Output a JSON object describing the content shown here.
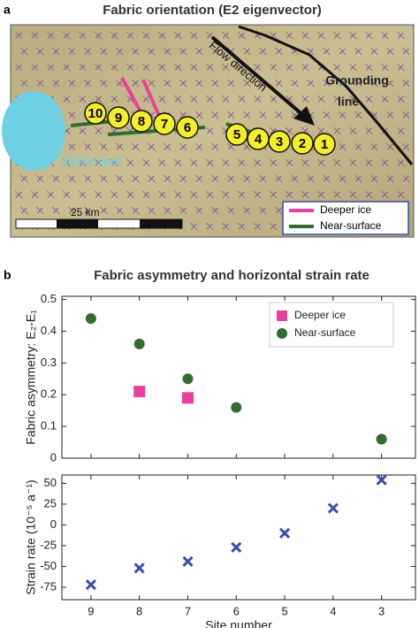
{
  "panel_a": {
    "letter": "a",
    "title": "Fabric orientation (E2 eigenvector)",
    "flow_label": "Flow direction",
    "grounding_label": [
      "Grounding",
      "line"
    ],
    "sticky_label": "Sticky spot",
    "scale_label": "25 km",
    "legend": [
      "Deeper ice",
      "Near-surface"
    ],
    "sites": [
      "10",
      "9",
      "8",
      "7",
      "6",
      "5",
      "4",
      "3",
      "2",
      "1"
    ]
  },
  "panel_b_letter": "b",
  "chart_data": [
    {
      "type": "scatter",
      "title": "Fabric asymmetry and horizontal strain rate",
      "ylabel": "Fabric asymmetry:  E₂-E₁",
      "xlim": [
        9.6,
        2.3
      ],
      "xticks": [
        9,
        8,
        7,
        6,
        5,
        4,
        3
      ],
      "ylim": [
        0,
        0.51
      ],
      "yticks": [
        0,
        0.1,
        0.2,
        0.3,
        0.4,
        0.5
      ],
      "legend": "upper right",
      "series": [
        {
          "name": "Deeper ice",
          "color": "#e8409c",
          "marker": "square",
          "x": [
            8,
            7
          ],
          "values": [
            0.21,
            0.19
          ]
        },
        {
          "name": "Near-surface",
          "color": "#2f6e2f",
          "marker": "circle",
          "x": [
            9,
            8,
            7,
            6,
            3
          ],
          "values": [
            0.44,
            0.36,
            0.25,
            0.16,
            0.06
          ]
        }
      ]
    },
    {
      "type": "scatter",
      "ylabel": "Strain rate (10⁻⁵ a⁻¹)",
      "xlabel": "Site number",
      "xlim": [
        9.6,
        2.3
      ],
      "xticks": [
        9,
        8,
        7,
        6,
        5,
        4,
        3
      ],
      "ylim": [
        -90,
        60
      ],
      "yticks": [
        -75,
        -50,
        -25,
        0,
        25,
        50
      ],
      "series": [
        {
          "color": "#3a4fa8",
          "marker": "x",
          "x": [
            9,
            8,
            7,
            6,
            5,
            4,
            3
          ],
          "values": [
            -72,
            -52,
            -44,
            -27,
            -10,
            20,
            54
          ]
        }
      ]
    }
  ]
}
